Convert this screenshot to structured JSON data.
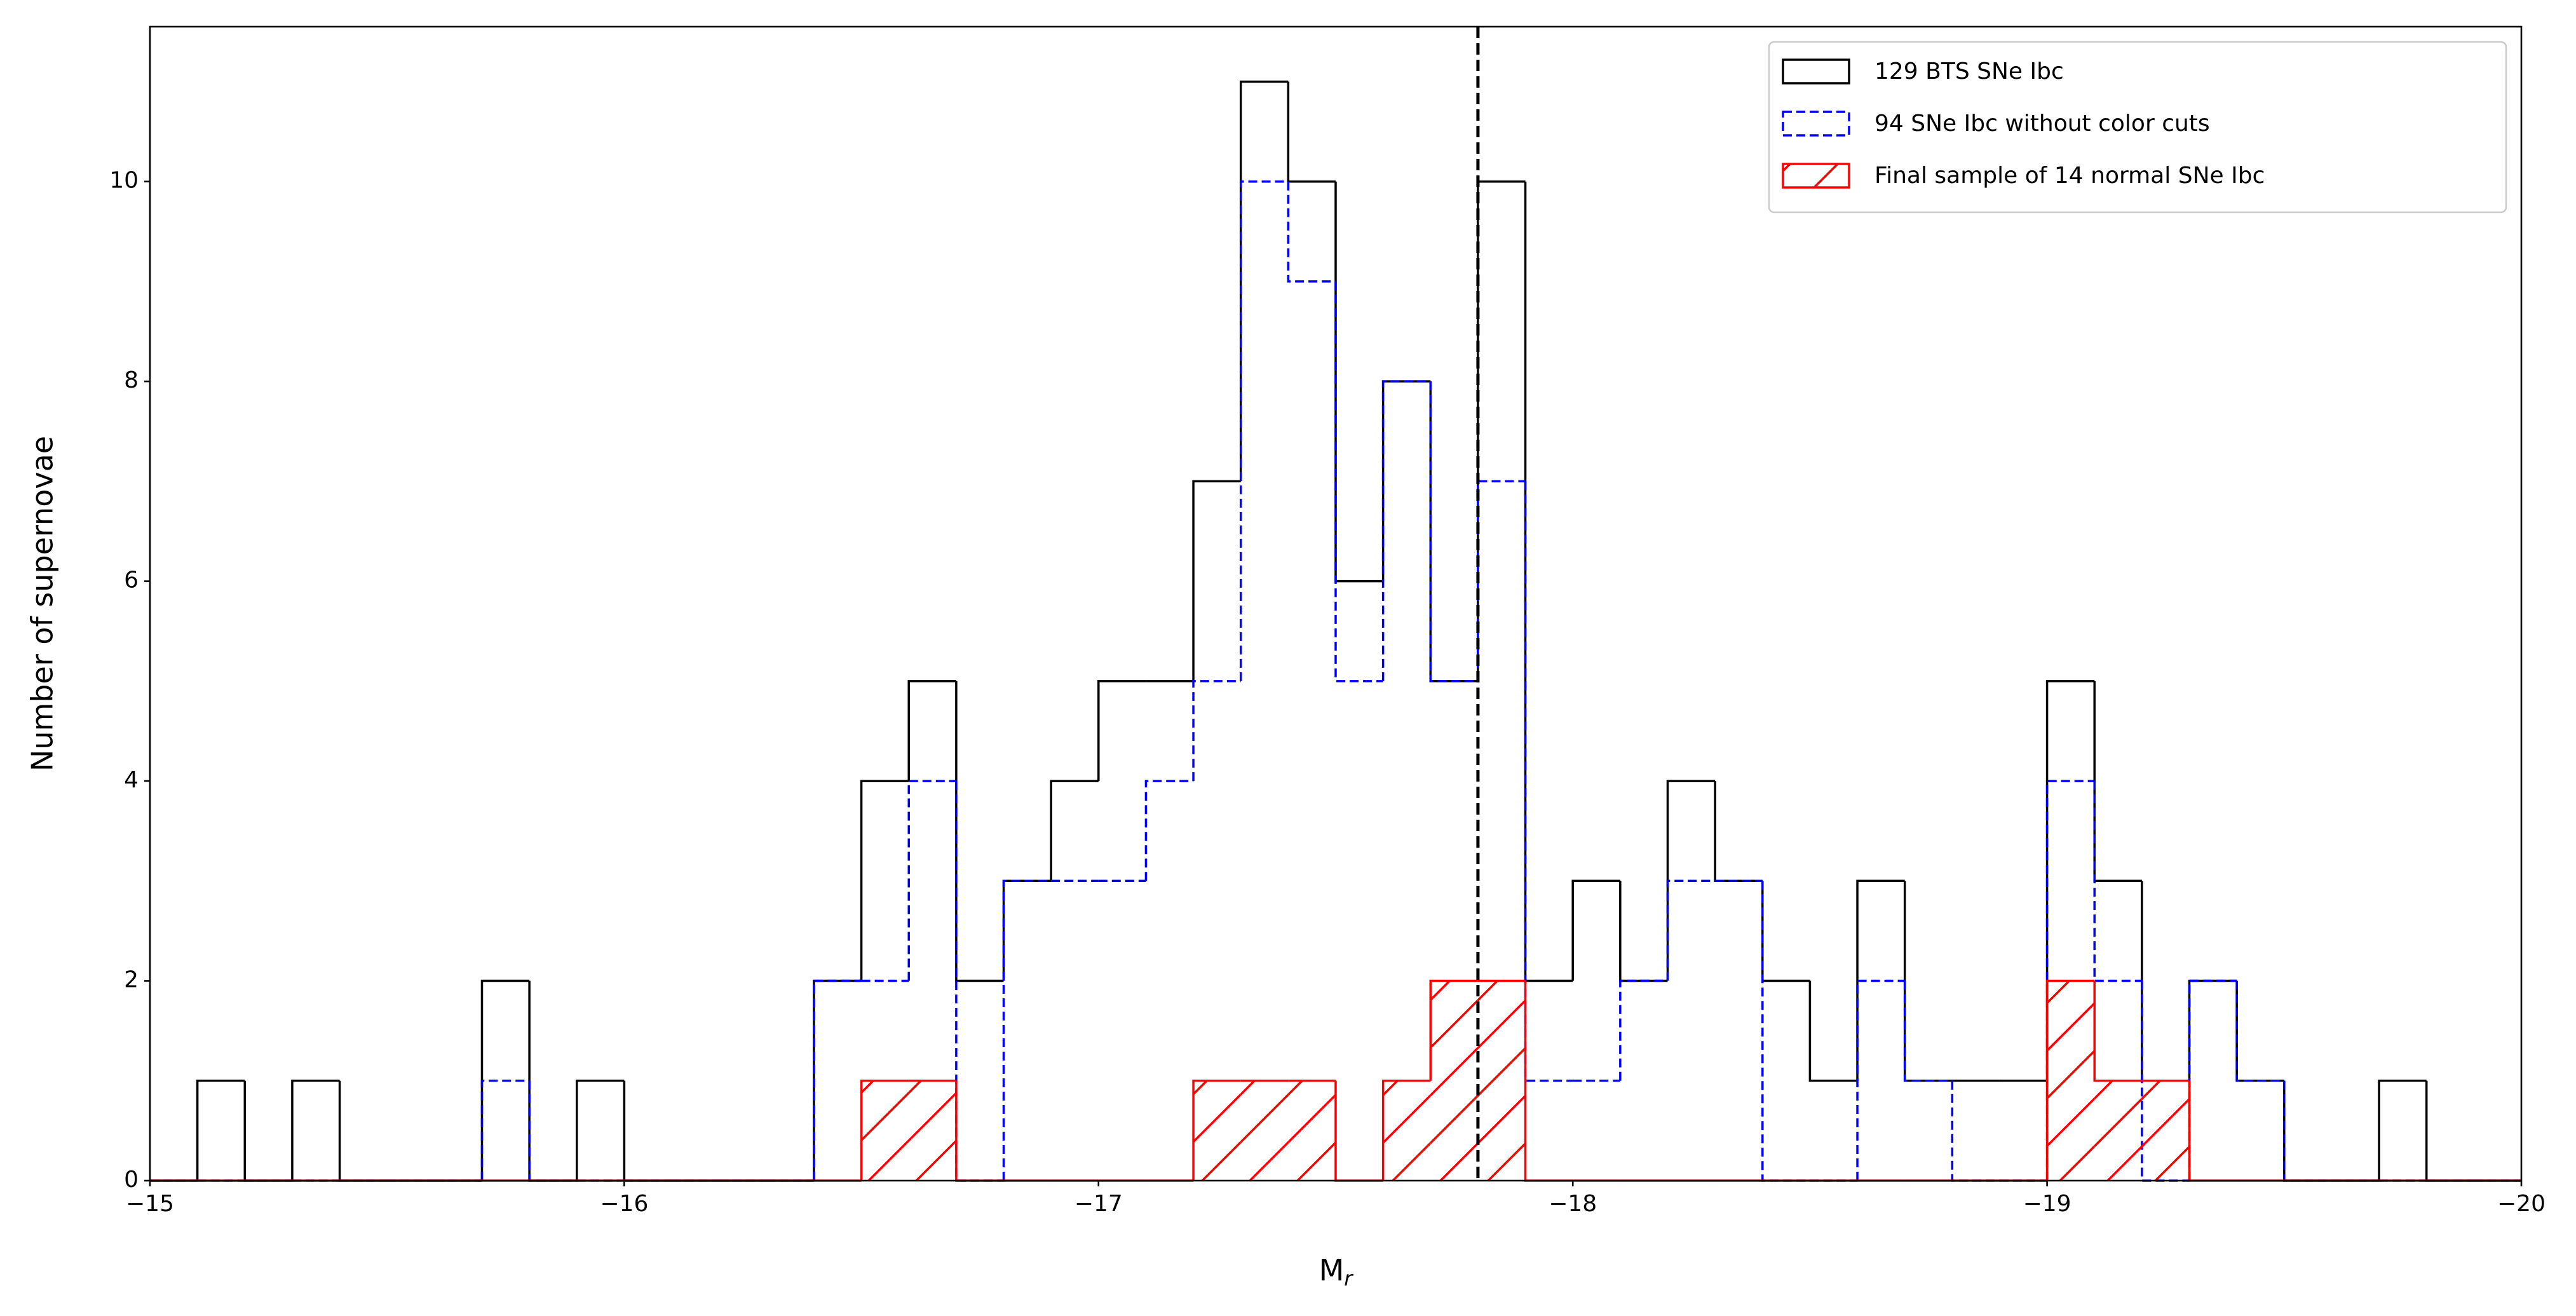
{
  "chart_data": {
    "type": "histogram",
    "xlabel": "M",
    "xlabel_subscript": "r",
    "ylabel": "Number of supernovae",
    "xlim": [
      -15,
      -20
    ],
    "ylim": [
      0,
      11.55
    ],
    "xticks": [
      {
        "value": -15,
        "label": "−15"
      },
      {
        "value": -16,
        "label": "−16"
      },
      {
        "value": -17,
        "label": "−17"
      },
      {
        "value": -18,
        "label": "−18"
      },
      {
        "value": -19,
        "label": "−19"
      },
      {
        "value": -20,
        "label": "−20"
      }
    ],
    "yticks": [
      0,
      2,
      4,
      6,
      8,
      10
    ],
    "legend": "upper right",
    "vline": -17.8,
    "vline_color": "#000000",
    "bins": [
      -15,
      -15.1,
      -15.2,
      -15.3,
      -15.4,
      -15.5,
      -15.6,
      -15.7,
      -15.8,
      -15.9,
      -16,
      -16.1,
      -16.2,
      -16.3,
      -16.4,
      -16.5,
      -16.6,
      -16.7,
      -16.8,
      -16.9,
      -17,
      -17.1,
      -17.2,
      -17.3,
      -17.4,
      -17.5,
      -17.6,
      -17.7,
      -17.8,
      -17.9,
      -18,
      -18.1,
      -18.2,
      -18.3,
      -18.4,
      -18.5,
      -18.6,
      -18.7,
      -18.8,
      -18.9,
      -19,
      -19.1,
      -19.2,
      -19.3,
      -19.4,
      -19.5,
      -19.6,
      -19.7,
      -19.8,
      -19.9,
      -20
    ],
    "series": [
      {
        "name": "129 BTS SNe Ibc",
        "color": "#000000",
        "linestyle": "solid",
        "values": [
          0,
          1,
          0,
          1,
          0,
          0,
          0,
          2,
          0,
          1,
          0,
          0,
          0,
          0,
          2,
          4,
          5,
          2,
          3,
          4,
          5,
          5,
          7,
          11,
          10,
          6,
          8,
          5,
          10,
          2,
          3,
          2,
          4,
          3,
          2,
          1,
          3,
          1,
          1,
          1,
          5,
          3,
          1,
          2,
          1,
          0,
          0,
          1,
          0,
          0
        ]
      },
      {
        "name": "94 SNe Ibc without color cuts",
        "color": "#0000ff",
        "linestyle": "dashed",
        "values": [
          0,
          0,
          0,
          0,
          0,
          0,
          0,
          1,
          0,
          0,
          0,
          0,
          0,
          0,
          2,
          2,
          4,
          0,
          3,
          3,
          3,
          4,
          5,
          10,
          9,
          5,
          8,
          5,
          7,
          1,
          1,
          2,
          3,
          3,
          0,
          0,
          2,
          1,
          0,
          0,
          4,
          2,
          0,
          2,
          1,
          0,
          0,
          0,
          0,
          0
        ]
      },
      {
        "name": "Final sample of 14 normal SNe Ibc",
        "color": "#ff0000",
        "linestyle": "solid",
        "hatch": "/",
        "values": [
          0,
          0,
          0,
          0,
          0,
          0,
          0,
          0,
          0,
          0,
          0,
          0,
          0,
          0,
          0,
          1,
          1,
          0,
          0,
          0,
          0,
          0,
          1,
          1,
          1,
          0,
          1,
          2,
          2,
          0,
          0,
          0,
          0,
          0,
          0,
          0,
          0,
          0,
          0,
          0,
          2,
          1,
          1,
          0,
          0,
          0,
          0,
          0,
          0,
          0
        ]
      }
    ]
  }
}
